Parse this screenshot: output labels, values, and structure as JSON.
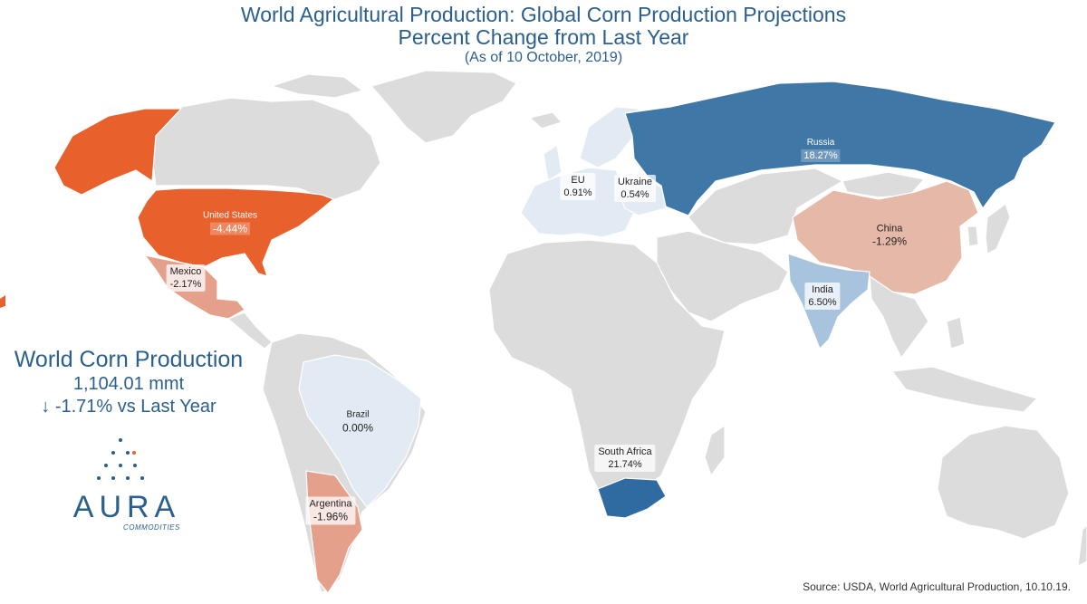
{
  "header": {
    "title": "World Agricultural Production: Global Corn Production Projections",
    "subtitle": "Percent Change from Last Year",
    "as_of": "(As of 10 October, 2019)"
  },
  "colors": {
    "strong_decrease": "#e8602c",
    "moderate_decrease": "#e4a08b",
    "slight_decrease": "#e6b8a8",
    "neutral": "#e2ebf4",
    "slight_increase": "#cfe0f0",
    "moderate_increase": "#a8c3dd",
    "strong_increase": "#3f77a6",
    "very_strong_increase": "#2f6aa0",
    "no_data_land": "#dcdcdc",
    "text_blue": "#2b5f8e"
  },
  "regions": [
    {
      "name": "United States",
      "value": "-4.44%"
    },
    {
      "name": "Mexico",
      "value": "-2.17%"
    },
    {
      "name": "Brazil",
      "value": "0.00%"
    },
    {
      "name": "Argentina",
      "value": "-1.96%"
    },
    {
      "name": "EU",
      "value": "0.91%"
    },
    {
      "name": "Ukraine",
      "value": "0.54%"
    },
    {
      "name": "Russia",
      "value": "18.27%"
    },
    {
      "name": "China",
      "value": "-1.29%"
    },
    {
      "name": "India",
      "value": "6.50%"
    },
    {
      "name": "South Africa",
      "value": "21.74%"
    }
  ],
  "summary": {
    "title": "World Corn Production",
    "total": "1,104.01 mmt",
    "change": "↓ -1.71% vs Last Year"
  },
  "logo": {
    "name": "AURA",
    "sub": "COMMODITIES"
  },
  "source": "Source: USDA, World Agricultural Production, 10.10.19."
}
